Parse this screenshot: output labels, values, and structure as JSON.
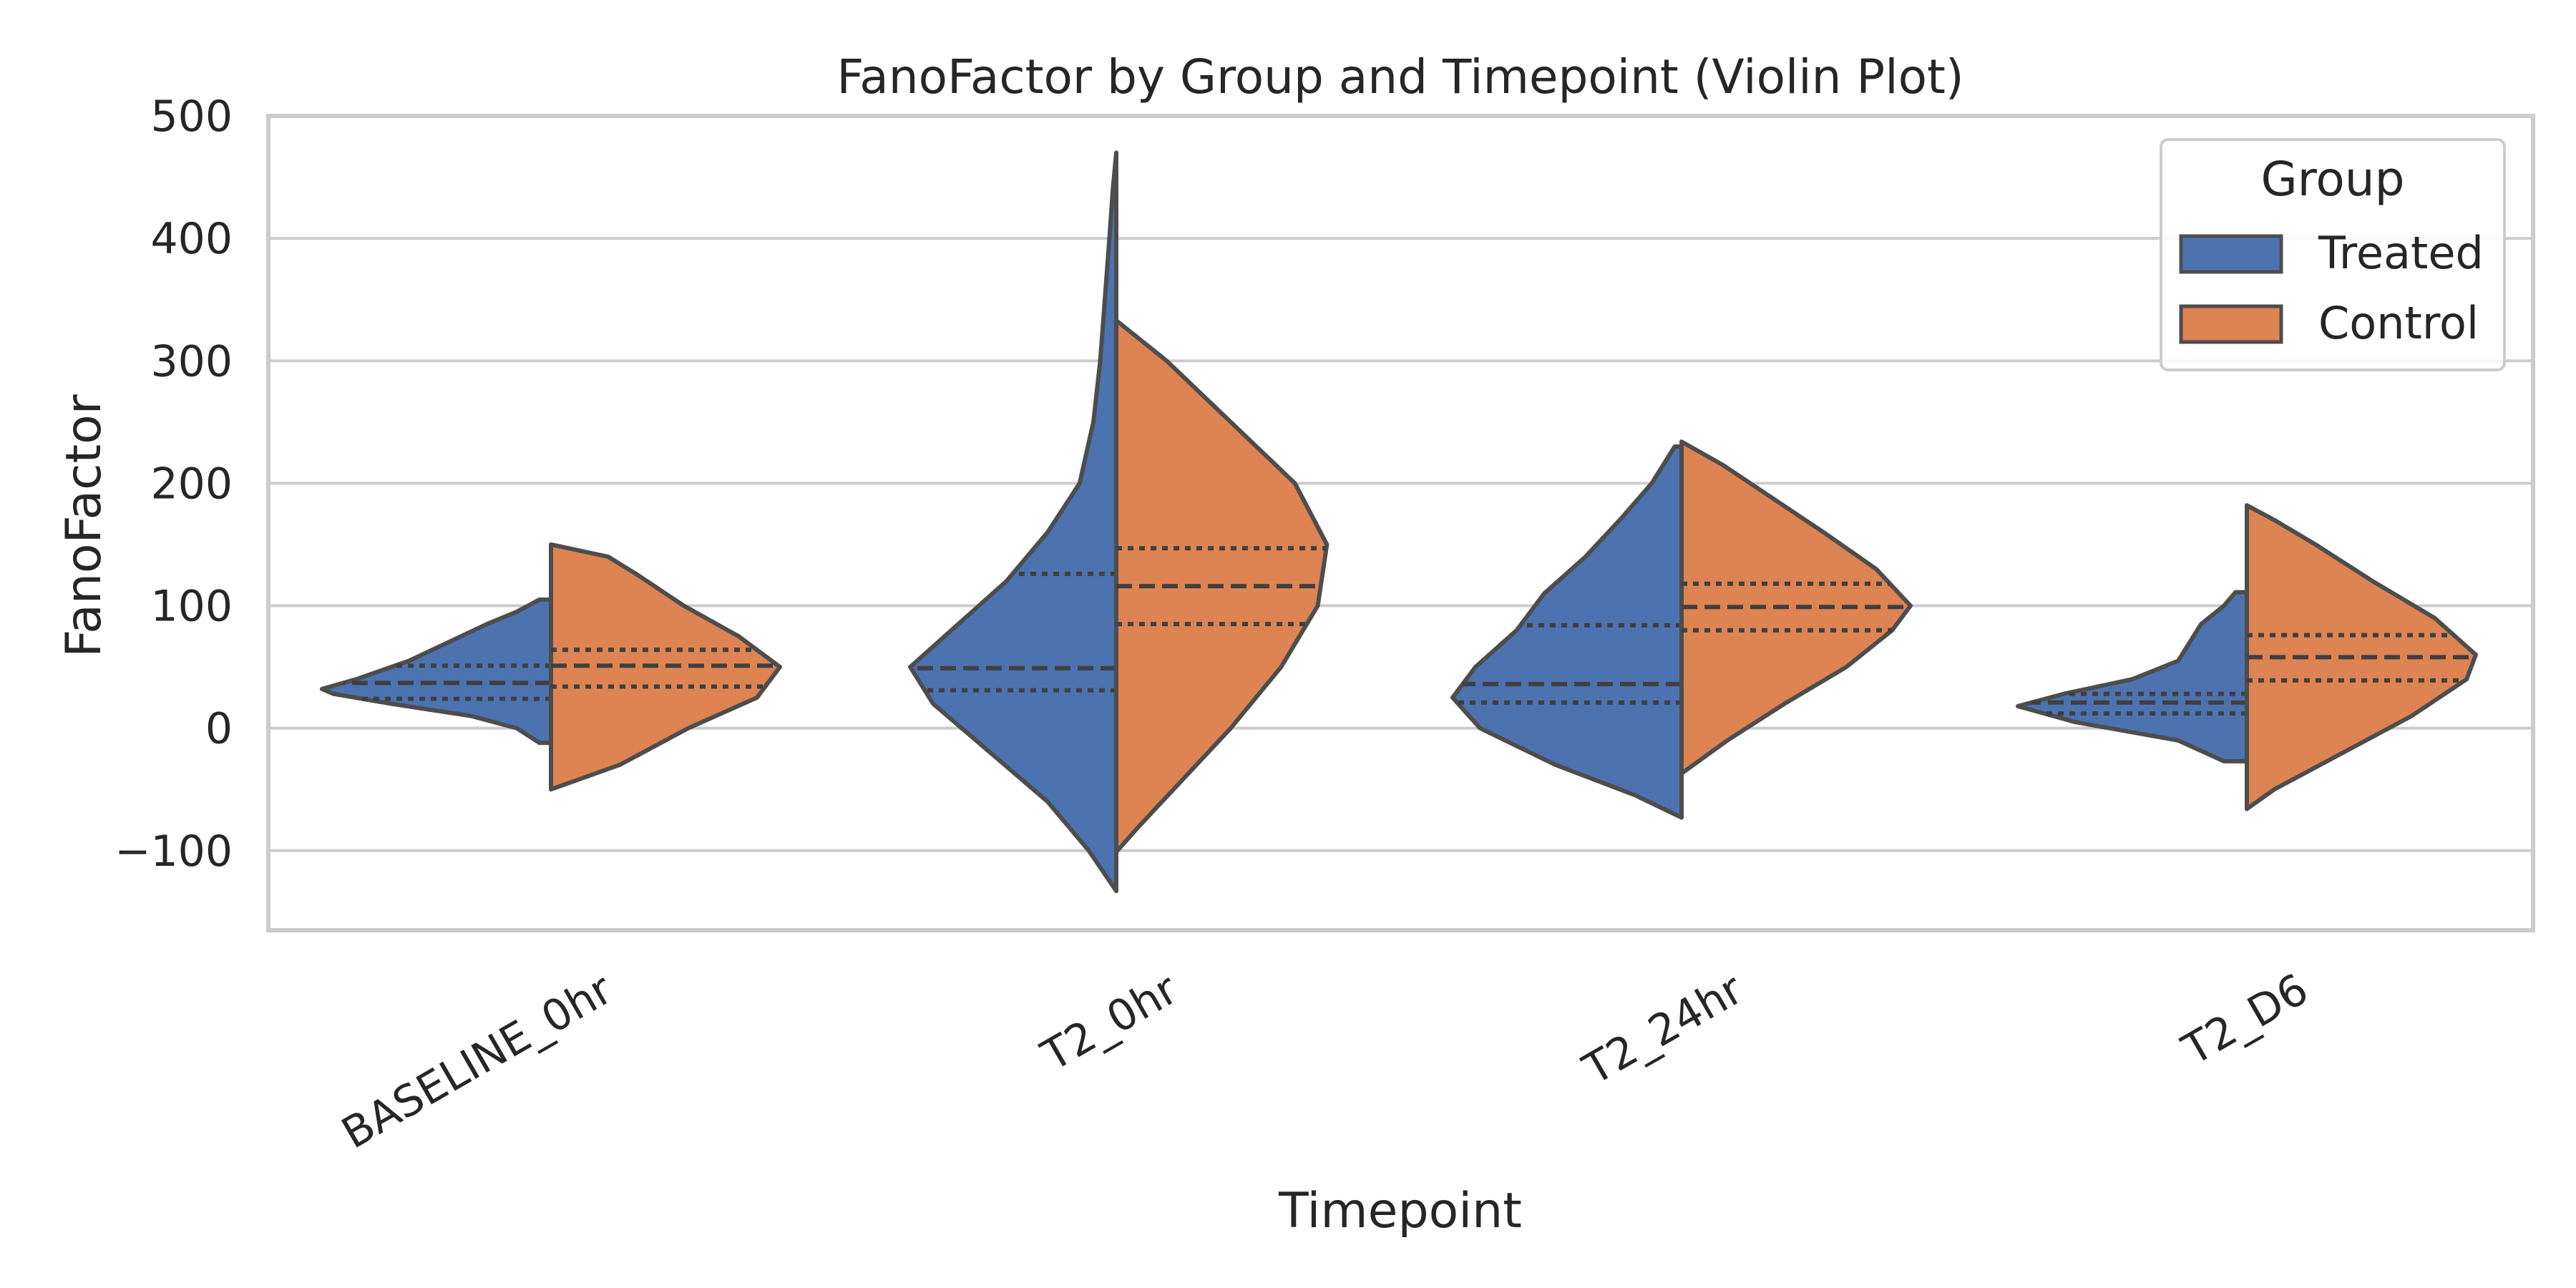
{
  "chart_data": {
    "type": "violin",
    "title": "FanoFactor by Group and Timepoint (Violin Plot)",
    "xlabel": "Timepoint",
    "ylabel": "FanoFactor",
    "categories": [
      "BASELINE_0hr",
      "T2_0hr",
      "T2_24hr",
      "T2_D6"
    ],
    "ylim": [
      -165,
      500
    ],
    "yticks": [
      -100,
      0,
      100,
      200,
      300,
      400,
      500
    ],
    "ytick_labels": [
      "−100",
      "0",
      "100",
      "200",
      "300",
      "400",
      "500"
    ],
    "grid": "horizontal",
    "split": true,
    "legend": {
      "title": "Group",
      "placement": "top-right"
    },
    "series": [
      {
        "name": "Treated",
        "color": "#4c72b0",
        "side": "left",
        "violins": [
          {
            "category": "BASELINE_0hr",
            "min": -12,
            "max": 105,
            "quartiles": [
              24,
              37,
              51
            ],
            "density": [
              [
                -12,
                0.05
              ],
              [
                0,
                0.15
              ],
              [
                10,
                0.35
              ],
              [
                20,
                0.7
              ],
              [
                28,
                0.95
              ],
              [
                32,
                1.0
              ],
              [
                40,
                0.85
              ],
              [
                55,
                0.62
              ],
              [
                70,
                0.45
              ],
              [
                85,
                0.28
              ],
              [
                95,
                0.15
              ],
              [
                105,
                0.05
              ]
            ]
          },
          {
            "category": "T2_0hr",
            "min": -133,
            "max": 470,
            "quartiles": [
              31,
              49,
              126
            ],
            "density": [
              [
                -133,
                0.0
              ],
              [
                -100,
                0.12
              ],
              [
                -60,
                0.3
              ],
              [
                -20,
                0.55
              ],
              [
                20,
                0.8
              ],
              [
                50,
                0.9
              ],
              [
                80,
                0.72
              ],
              [
                120,
                0.48
              ],
              [
                160,
                0.3
              ],
              [
                200,
                0.16
              ],
              [
                250,
                0.1
              ],
              [
                300,
                0.07
              ],
              [
                350,
                0.05
              ],
              [
                400,
                0.03
              ],
              [
                440,
                0.015
              ],
              [
                470,
                0.0
              ]
            ]
          },
          {
            "category": "T2_24hr",
            "min": -73,
            "max": 230,
            "quartiles": [
              21,
              36,
              84
            ],
            "density": [
              [
                -73,
                0.0
              ],
              [
                -55,
                0.2
              ],
              [
                -30,
                0.55
              ],
              [
                0,
                0.88
              ],
              [
                25,
                1.0
              ],
              [
                50,
                0.9
              ],
              [
                80,
                0.72
              ],
              [
                110,
                0.6
              ],
              [
                140,
                0.42
              ],
              [
                170,
                0.27
              ],
              [
                200,
                0.13
              ],
              [
                230,
                0.03
              ]
            ]
          },
          {
            "category": "T2_D6",
            "min": -27,
            "max": 111,
            "quartiles": [
              12,
              21,
              28
            ],
            "density": [
              [
                -27,
                0.1
              ],
              [
                -10,
                0.3
              ],
              [
                5,
                0.75
              ],
              [
                18,
                1.0
              ],
              [
                28,
                0.8
              ],
              [
                40,
                0.5
              ],
              [
                55,
                0.3
              ],
              [
                70,
                0.25
              ],
              [
                85,
                0.2
              ],
              [
                100,
                0.1
              ],
              [
                111,
                0.05
              ]
            ]
          }
        ]
      },
      {
        "name": "Control",
        "color": "#dd8452",
        "side": "right",
        "violins": [
          {
            "category": "BASELINE_0hr",
            "min": -50,
            "max": 150,
            "quartiles": [
              34,
              51,
              64
            ],
            "density": [
              [
                -50,
                0.0
              ],
              [
                -30,
                0.3
              ],
              [
                0,
                0.6
              ],
              [
                25,
                0.9
              ],
              [
                50,
                1.0
              ],
              [
                75,
                0.82
              ],
              [
                100,
                0.58
              ],
              [
                125,
                0.38
              ],
              [
                140,
                0.25
              ],
              [
                150,
                0.0
              ]
            ]
          },
          {
            "category": "T2_0hr",
            "min": -101,
            "max": 333,
            "quartiles": [
              85,
              116,
              147
            ],
            "density": [
              [
                -101,
                0.0
              ],
              [
                -80,
                0.1
              ],
              [
                -40,
                0.3
              ],
              [
                0,
                0.5
              ],
              [
                50,
                0.72
              ],
              [
                100,
                0.88
              ],
              [
                150,
                0.92
              ],
              [
                200,
                0.78
              ],
              [
                250,
                0.5
              ],
              [
                300,
                0.22
              ],
              [
                333,
                0.0
              ]
            ]
          },
          {
            "category": "T2_24hr",
            "min": -37,
            "max": 234,
            "quartiles": [
              80,
              99,
              118
            ],
            "density": [
              [
                -37,
                0.0
              ],
              [
                -10,
                0.2
              ],
              [
                20,
                0.45
              ],
              [
                50,
                0.72
              ],
              [
                80,
                0.92
              ],
              [
                100,
                1.0
              ],
              [
                130,
                0.85
              ],
              [
                160,
                0.62
              ],
              [
                190,
                0.38
              ],
              [
                215,
                0.18
              ],
              [
                234,
                0.0
              ]
            ]
          },
          {
            "category": "T2_D6",
            "min": -66,
            "max": 182,
            "quartiles": [
              39,
              58,
              76
            ],
            "density": [
              [
                -66,
                0.0
              ],
              [
                -50,
                0.12
              ],
              [
                -20,
                0.42
              ],
              [
                10,
                0.72
              ],
              [
                40,
                0.96
              ],
              [
                60,
                1.0
              ],
              [
                90,
                0.82
              ],
              [
                120,
                0.55
              ],
              [
                150,
                0.3
              ],
              [
                170,
                0.12
              ],
              [
                182,
                0.0
              ]
            ]
          }
        ]
      }
    ]
  }
}
